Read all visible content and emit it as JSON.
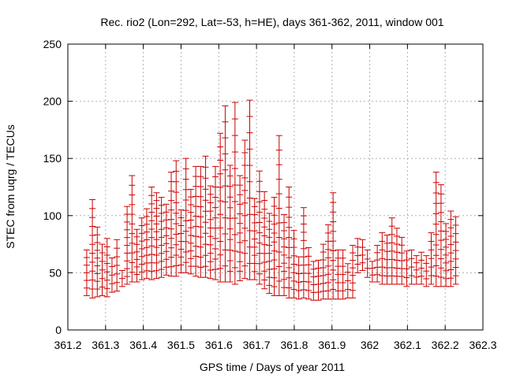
{
  "chart_data": {
    "type": "scatter",
    "style": "vertical error bars with horizontal ticks",
    "title": "Rec. rio2 (Lon=292, Lat=-53, h=HE), days 361-362, 2011, window 001",
    "xlabel": "GPS time / Days of year 2011",
    "ylabel": "STEC from uqrg / TECUs",
    "xlim": [
      361.2,
      362.3
    ],
    "ylim": [
      0,
      250
    ],
    "xticks": [
      361.2,
      361.3,
      361.4,
      361.5,
      361.6,
      361.7,
      361.8,
      361.9,
      362.0,
      362.1,
      362.2,
      362.3
    ],
    "xtick_labels": [
      "361.2",
      "361.3",
      "361.4",
      "361.5",
      "361.6",
      "361.7",
      "361.8",
      "361.9",
      "362",
      "362.1",
      "362.2",
      "362.3"
    ],
    "yticks": [
      0,
      50,
      100,
      150,
      200,
      250
    ],
    "ytick_labels": [
      "0",
      "50",
      "100",
      "150",
      "200",
      "250"
    ],
    "grid": true,
    "color": "#cc0000",
    "series": [
      {
        "name": "STEC",
        "x": [
          361.25,
          361.265,
          361.278,
          361.291,
          361.304,
          361.317,
          361.33,
          361.344,
          361.357,
          361.37,
          361.383,
          361.396,
          361.409,
          361.422,
          361.435,
          361.448,
          361.461,
          361.474,
          361.487,
          361.5,
          361.513,
          361.526,
          361.539,
          361.552,
          361.565,
          361.578,
          361.591,
          361.604,
          361.617,
          361.63,
          361.643,
          361.656,
          361.669,
          361.682,
          361.695,
          361.708,
          361.721,
          361.734,
          361.747,
          361.76,
          361.773,
          361.786,
          361.799,
          361.812,
          361.825,
          361.838,
          361.851,
          361.864,
          361.877,
          361.89,
          361.903,
          361.916,
          361.929,
          361.942,
          361.955,
          361.968,
          361.981,
          361.994,
          362.007,
          362.02,
          362.033,
          362.046,
          362.059,
          362.072,
          362.085,
          362.098,
          362.111,
          362.124,
          362.137,
          362.15,
          362.163,
          362.176,
          362.189,
          362.202,
          362.215,
          362.228
        ],
        "low": [
          30,
          28,
          29,
          30,
          29,
          33,
          34,
          38,
          40,
          42,
          42,
          44,
          45,
          44,
          45,
          46,
          48,
          47,
          47,
          50,
          50,
          49,
          47,
          46,
          46,
          45,
          44,
          42,
          42,
          42,
          40,
          43,
          45,
          44,
          44,
          40,
          36,
          32,
          30,
          30,
          30,
          28,
          28,
          27,
          28,
          27,
          26,
          26,
          27,
          27,
          27,
          27,
          27,
          28,
          28,
          50,
          52,
          46,
          42,
          42,
          40,
          40,
          40,
          40,
          40,
          38,
          40,
          40,
          40,
          38,
          40,
          38,
          38,
          38,
          38,
          40
        ],
        "high": [
          70,
          114,
          90,
          75,
          80,
          63,
          79,
          52,
          108,
          135,
          88,
          98,
          106,
          125,
          120,
          116,
          110,
          138,
          148,
          105,
          150,
          123,
          143,
          143,
          152,
          126,
          143,
          172,
          196,
          144,
          199,
          135,
          166,
          201,
          115,
          139,
          121,
          102,
          116,
          170,
          101,
          125,
          87,
          64,
          107,
          72,
          60,
          61,
          75,
          92,
          120,
          70,
          70,
          58,
          74,
          80,
          79,
          70,
          60,
          74,
          85,
          83,
          98,
          89,
          81,
          69,
          70,
          65,
          68,
          65,
          85,
          138,
          127,
          93,
          104,
          99
        ]
      }
    ]
  }
}
